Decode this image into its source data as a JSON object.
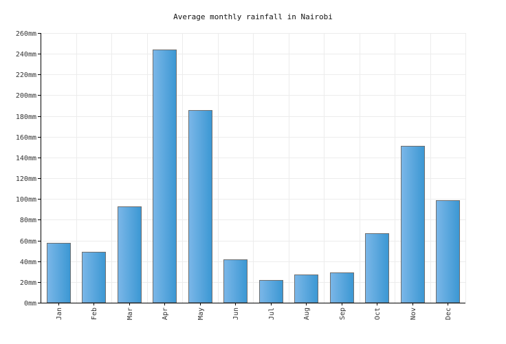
{
  "chart_data": {
    "type": "bar",
    "title": "Average monthly rainfall in Nairobi",
    "xlabel": "",
    "ylabel": "",
    "categories": [
      "Jan",
      "Feb",
      "Mar",
      "Apr",
      "May",
      "Jun",
      "Jul",
      "Aug",
      "Sep",
      "Oct",
      "Nov",
      "Dec"
    ],
    "values": [
      58,
      49,
      93,
      244,
      186,
      42,
      22,
      27,
      29,
      67,
      151,
      99
    ],
    "unit": "mm",
    "ylim": [
      0,
      260
    ],
    "yticks": [
      0,
      20,
      40,
      60,
      80,
      100,
      120,
      140,
      160,
      180,
      200,
      220,
      240,
      260
    ],
    "ytick_labels": [
      "0mm",
      "20mm",
      "40mm",
      "60mm",
      "80mm",
      "100mm",
      "120mm",
      "140mm",
      "160mm",
      "180mm",
      "200mm",
      "220mm",
      "240mm",
      "260mm"
    ],
    "grid": true,
    "legend": "none",
    "colors": {
      "bar_left": "#7bb7e8",
      "bar_right": "#3b97d3",
      "bar_border": "#6e6e6e",
      "grid": "#ececec"
    }
  }
}
